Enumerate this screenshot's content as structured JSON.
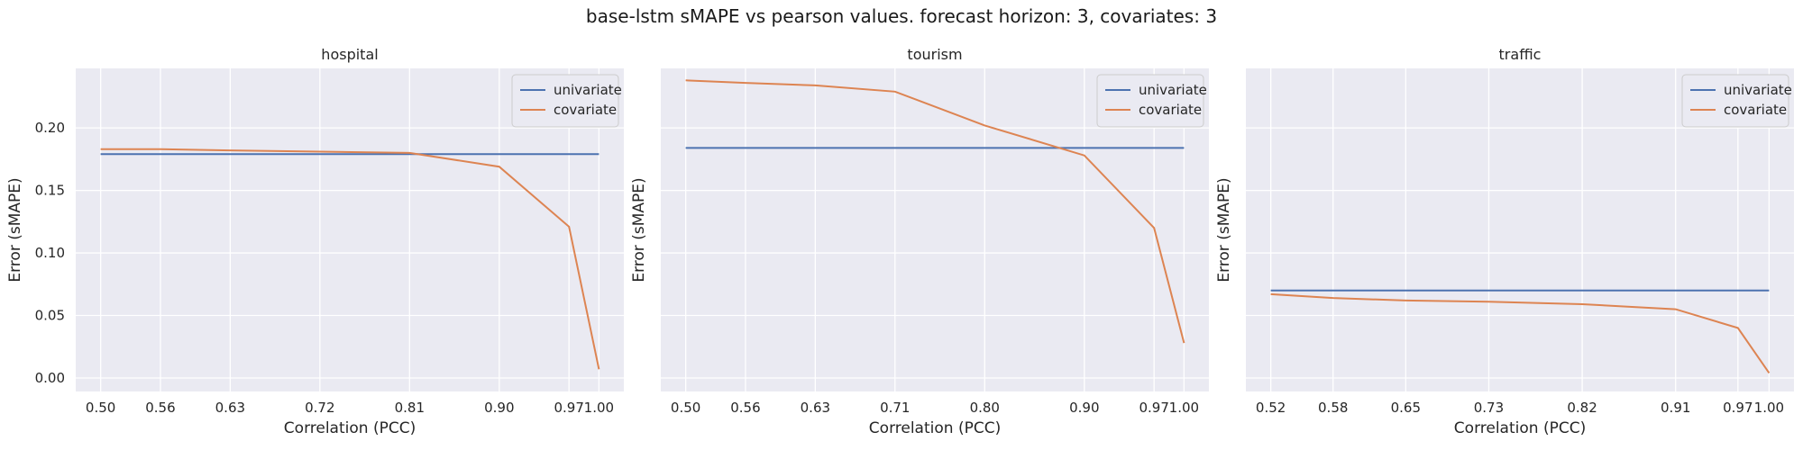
{
  "suptitle": "base-lstm  sMAPE vs pearson values. forecast horizon: 3, covariates: 3",
  "colors": {
    "univariate": "#4C72B0",
    "covariate": "#DD8452",
    "plot_bg": "#EAEAF2",
    "grid": "#FFFFFF"
  },
  "chart_data": [
    {
      "type": "line",
      "title": "hospital",
      "xlabel": "Correlation (PCC)",
      "ylabel": "Error (sMAPE)",
      "xlim": [
        0.475,
        1.025
      ],
      "ylim": [
        -0.0108,
        0.2476
      ],
      "xticks": [
        0.5,
        0.56,
        0.63,
        0.72,
        0.81,
        0.9,
        0.97,
        1.0
      ],
      "xtick_labels": [
        "0.50",
        "0.56",
        "0.63",
        "0.72",
        "0.81",
        "0.90",
        "0.97",
        "1.00"
      ],
      "yticks": [
        0.0,
        0.05,
        0.1,
        0.15,
        0.2
      ],
      "ytick_labels": [
        "0.00",
        "0.05",
        "0.10",
        "0.15",
        "0.20"
      ],
      "show_yticklabels": true,
      "grid": true,
      "legend": "top-right",
      "series": [
        {
          "name": "univariate",
          "x": [
            0.5,
            0.56,
            0.63,
            0.72,
            0.81,
            0.9,
            0.97,
            1.0
          ],
          "values": [
            0.179,
            0.179,
            0.179,
            0.179,
            0.179,
            0.179,
            0.179,
            0.179
          ]
        },
        {
          "name": "covariate",
          "x": [
            0.5,
            0.56,
            0.63,
            0.72,
            0.81,
            0.9,
            0.97,
            1.0
          ],
          "values": [
            0.183,
            0.183,
            0.182,
            0.181,
            0.18,
            0.169,
            0.121,
            0.007
          ]
        }
      ]
    },
    {
      "type": "line",
      "title": "tourism",
      "xlabel": "Correlation (PCC)",
      "ylabel": "Error (sMAPE)",
      "xlim": [
        0.475,
        1.025
      ],
      "ylim": [
        -0.0108,
        0.2476
      ],
      "xticks": [
        0.5,
        0.56,
        0.63,
        0.71,
        0.8,
        0.9,
        0.97,
        1.0
      ],
      "xtick_labels": [
        "0.50",
        "0.56",
        "0.63",
        "0.71",
        "0.80",
        "0.90",
        "0.97",
        "1.00"
      ],
      "yticks": [
        0.0,
        0.05,
        0.1,
        0.15,
        0.2
      ],
      "ytick_labels": [
        "0.00",
        "0.05",
        "0.10",
        "0.15",
        "0.20"
      ],
      "show_yticklabels": false,
      "grid": true,
      "legend": "top-right",
      "series": [
        {
          "name": "univariate",
          "x": [
            0.5,
            0.56,
            0.63,
            0.71,
            0.8,
            0.9,
            0.97,
            1.0
          ],
          "values": [
            0.184,
            0.184,
            0.184,
            0.184,
            0.184,
            0.184,
            0.184,
            0.184
          ]
        },
        {
          "name": "covariate",
          "x": [
            0.5,
            0.56,
            0.63,
            0.71,
            0.8,
            0.9,
            0.97,
            1.0
          ],
          "values": [
            0.238,
            0.236,
            0.234,
            0.229,
            0.202,
            0.178,
            0.12,
            0.028
          ]
        }
      ]
    },
    {
      "type": "line",
      "title": "traffic",
      "xlabel": "Correlation (PCC)",
      "ylabel": "Error (sMAPE)",
      "xlim": [
        0.496,
        1.024
      ],
      "ylim": [
        -0.0108,
        0.2476
      ],
      "xticks": [
        0.52,
        0.58,
        0.65,
        0.73,
        0.82,
        0.91,
        0.97,
        1.0
      ],
      "xtick_labels": [
        "0.52",
        "0.58",
        "0.65",
        "0.73",
        "0.82",
        "0.91",
        "0.97",
        "1.00"
      ],
      "yticks": [
        0.0,
        0.05,
        0.1,
        0.15,
        0.2
      ],
      "ytick_labels": [
        "0.00",
        "0.05",
        "0.10",
        "0.15",
        "0.20"
      ],
      "show_yticklabels": false,
      "grid": true,
      "legend": "top-right",
      "series": [
        {
          "name": "univariate",
          "x": [
            0.52,
            0.58,
            0.65,
            0.73,
            0.82,
            0.91,
            0.97,
            1.0
          ],
          "values": [
            0.07,
            0.07,
            0.07,
            0.07,
            0.07,
            0.07,
            0.07,
            0.07
          ]
        },
        {
          "name": "covariate",
          "x": [
            0.52,
            0.58,
            0.65,
            0.73,
            0.82,
            0.91,
            0.97,
            1.0
          ],
          "values": [
            0.067,
            0.064,
            0.062,
            0.061,
            0.059,
            0.055,
            0.04,
            0.004
          ]
        }
      ]
    }
  ]
}
